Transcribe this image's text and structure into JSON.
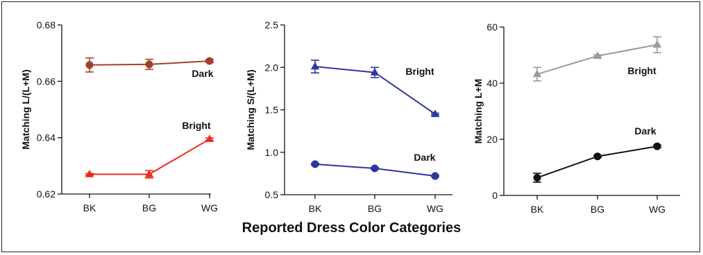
{
  "figure": {
    "xlabel": "Reported Dress Color Categories"
  },
  "chart_data": [
    {
      "type": "line",
      "title": "",
      "xlabel": "",
      "ylabel": "Matching L/(L+M)",
      "categories": [
        "BK",
        "BG",
        "WG"
      ],
      "ylim": [
        0.62,
        0.68
      ],
      "yticks": [
        "0.62",
        "0.64",
        "0.66",
        "0.68"
      ],
      "series": [
        {
          "name": "Dark",
          "marker": "circle",
          "color": "#a0402a",
          "values": [
            0.6658,
            0.666,
            0.6672
          ],
          "errors": [
            0.0025,
            0.0018,
            0.0005
          ]
        },
        {
          "name": "Bright",
          "marker": "triangle",
          "color": "#ee2a1a",
          "values": [
            0.627,
            0.627,
            0.6395
          ],
          "errors": [
            0.0003,
            0.0013,
            0.0004
          ]
        }
      ]
    },
    {
      "type": "line",
      "title": "",
      "xlabel": "",
      "ylabel": "Matching S/(L+M)",
      "categories": [
        "BK",
        "BG",
        "WG"
      ],
      "ylim": [
        0.5,
        2.5
      ],
      "yticks": [
        "0.5",
        "1.0",
        "1.5",
        "2.0",
        "2.5"
      ],
      "series": [
        {
          "name": "Bright",
          "marker": "triangle",
          "color": "#2d36a3",
          "values": [
            2.01,
            1.94,
            1.45
          ],
          "errors": [
            0.075,
            0.06,
            0.01
          ]
        },
        {
          "name": "Dark",
          "marker": "circle",
          "color": "#2d36a3",
          "values": [
            0.86,
            0.81,
            0.72
          ],
          "errors": [
            0.01,
            0.01,
            0.01
          ]
        }
      ]
    },
    {
      "type": "line",
      "title": "",
      "xlabel": "",
      "ylabel": "Matching L+M",
      "categories": [
        "BK",
        "BG",
        "WG"
      ],
      "ylim": [
        0,
        60
      ],
      "yticks": [
        "0",
        "20",
        "40",
        "60"
      ],
      "series": [
        {
          "name": "Bright",
          "marker": "triangle",
          "color": "#999999",
          "values": [
            43.2,
            49.7,
            53.7
          ],
          "errors": [
            2.4,
            0.4,
            2.8
          ]
        },
        {
          "name": "Dark",
          "marker": "circle",
          "color": "#111111",
          "values": [
            6.3,
            13.9,
            17.5
          ],
          "errors": [
            1.6,
            0.4,
            0.4
          ]
        }
      ]
    }
  ]
}
